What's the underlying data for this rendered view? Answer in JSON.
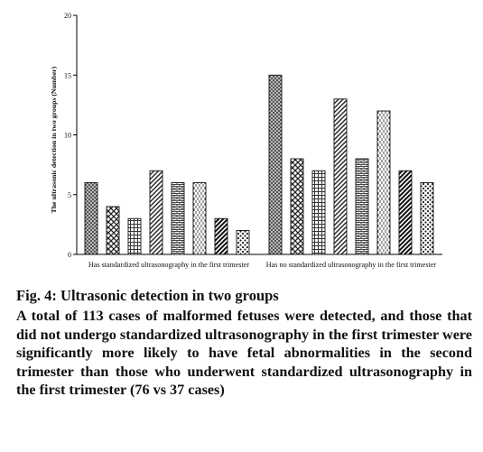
{
  "chart_data": {
    "type": "bar",
    "ylabel": "The ultrasonic detection in two groups (Number)",
    "ylim": [
      0,
      20
    ],
    "yticks": [
      "0",
      "5",
      "10",
      "15",
      "20"
    ],
    "groups": [
      {
        "label": "Has standardized ultrasonography in the first trimester",
        "values": [
          6,
          4,
          3,
          7,
          6,
          6,
          3,
          2
        ]
      },
      {
        "label": "Has no standardized ultrasonography in the first trimester",
        "values": [
          15,
          8,
          7,
          13,
          8,
          12,
          7,
          6
        ]
      }
    ],
    "bar_patterns": [
      "dense-check",
      "diamond-check",
      "small-grid",
      "diag-stripe",
      "horiz-brick",
      "vert-dash",
      "bold-diag",
      "dots"
    ]
  },
  "caption": {
    "title": "Fig. 4: Ultrasonic detection in two groups",
    "text": "A total of 113 cases of malformed fetuses were detected, and those that did not undergo standardized ultrasonography in the first trimester were significantly more likely to have fetal abnormalities in the second trimester than those who underwent standardized ultrasonography in the first trimester (76 vs 37 cases)"
  }
}
